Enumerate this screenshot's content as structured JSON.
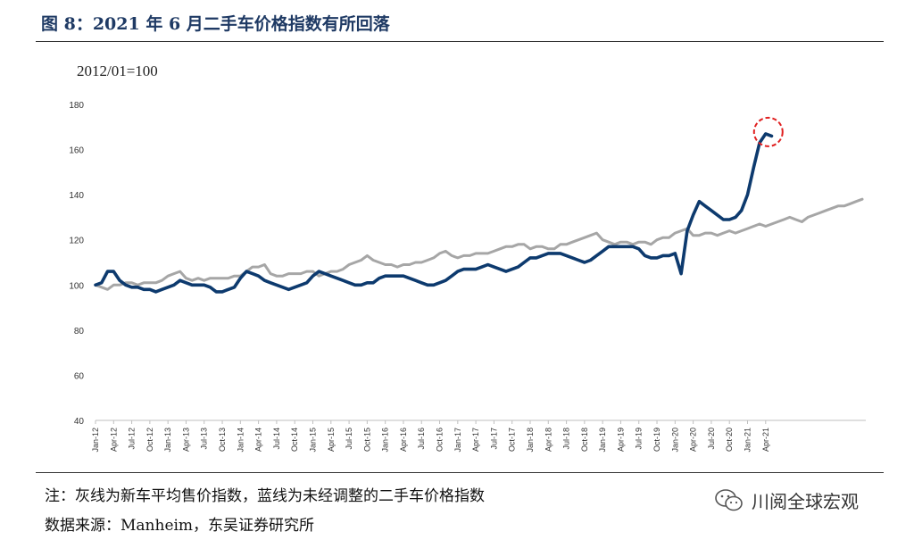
{
  "header": {
    "title": "图 8：2021 年 6 月二手车价格指数有所回落"
  },
  "chart_unit_label": "2012/01=100",
  "footer": {
    "note": "注：灰线为新车平均售价指数，蓝线为未经调整的二手车价格指数",
    "source": "数据来源：Manheim，东吴证券研究所",
    "brand": "川阅全球宏观",
    "brand_icon": "wechat-icon"
  },
  "colors": {
    "gray_series": "#a6a6a6",
    "blue_series": "#0d3a6e",
    "highlight": "#e02020",
    "axis": "#bfbfbf"
  },
  "chart_data": {
    "type": "line",
    "ylim": [
      40,
      180
    ],
    "yticks": [
      40,
      60,
      80,
      100,
      120,
      140,
      160,
      180
    ],
    "x_tick_labels": [
      "Jan-12",
      "Apr-12",
      "Jul-12",
      "Oct-12",
      "Jan-13",
      "Apr-13",
      "Jul-13",
      "Oct-13",
      "Jan-14",
      "Apr-14",
      "Jul-14",
      "Oct-14",
      "Jan-15",
      "Apr-15",
      "Jul-15",
      "Oct-15",
      "Jan-16",
      "Apr-16",
      "Jul-16",
      "Oct-16",
      "Jan-17",
      "Apr-17",
      "Jul-17",
      "Oct-17",
      "Jan-18",
      "Apr-18",
      "Jul-18",
      "Oct-18",
      "Jan-19",
      "Apr-19",
      "Jul-19",
      "Oct-19",
      "Jan-20",
      "Apr-20",
      "Jul-20",
      "Oct-20",
      "Jan-21",
      "Apr-21"
    ],
    "grid": false,
    "legend": "none",
    "annotation": "red dashed circle around the latest peak of the blue series",
    "series": [
      {
        "key": "new_car_avg_price_index",
        "color": "#a6a6a6",
        "values": [
          100,
          99,
          98,
          100,
          100,
          101,
          101,
          100,
          101,
          101,
          101,
          102,
          104,
          105,
          106,
          103,
          102,
          103,
          102,
          103,
          103,
          103,
          103,
          104,
          104,
          106,
          108,
          108,
          109,
          105,
          104,
          104,
          105,
          105,
          105,
          106,
          106,
          104,
          105,
          106,
          106,
          107,
          109,
          110,
          111,
          113,
          111,
          110,
          109,
          109,
          108,
          109,
          109,
          110,
          110,
          111,
          112,
          114,
          115,
          113,
          112,
          113,
          113,
          114,
          114,
          114,
          115,
          116,
          117,
          117,
          118,
          118,
          116,
          117,
          117,
          116,
          116,
          118,
          118,
          119,
          120,
          121,
          122,
          123,
          120,
          119,
          118,
          119,
          119,
          118,
          119,
          119,
          118,
          120,
          121,
          121,
          123,
          124,
          125,
          122,
          122,
          123,
          123,
          122,
          123,
          124,
          123,
          124,
          125,
          126,
          127,
          126,
          127,
          128,
          129,
          130,
          129,
          128,
          130,
          131,
          132,
          133,
          134,
          135,
          135,
          136,
          137,
          138
        ]
      },
      {
        "key": "used_car_price_index",
        "color": "#0d3a6e",
        "values": [
          100,
          101,
          106,
          106,
          102,
          100,
          99,
          99,
          98,
          98,
          97,
          98,
          99,
          100,
          102,
          101,
          100,
          100,
          100,
          99,
          97,
          97,
          98,
          99,
          103,
          106,
          105,
          104,
          102,
          101,
          100,
          99,
          98,
          99,
          100,
          101,
          104,
          106,
          105,
          104,
          103,
          102,
          101,
          100,
          100,
          101,
          101,
          103,
          104,
          104,
          104,
          104,
          103,
          102,
          101,
          100,
          100,
          101,
          102,
          104,
          106,
          107,
          107,
          107,
          108,
          109,
          108,
          107,
          106,
          107,
          108,
          110,
          112,
          112,
          113,
          114,
          114,
          114,
          113,
          112,
          111,
          110,
          111,
          113,
          115,
          117,
          117,
          117,
          117,
          117,
          116,
          113,
          112,
          112,
          113,
          113,
          114,
          105,
          124,
          131,
          137,
          135,
          133,
          131,
          129,
          129,
          130,
          133,
          140,
          152,
          163,
          167,
          166
        ]
      }
    ]
  }
}
